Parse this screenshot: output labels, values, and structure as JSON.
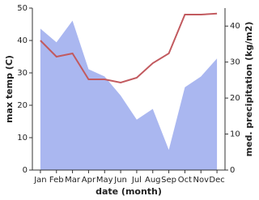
{
  "chart_data": {
    "type": "line-area",
    "xlabel": "date (month)",
    "ylabel": "max temp (C)",
    "y2label": "med. precipitation (kg/m2)",
    "categories": [
      "Jan",
      "Feb",
      "Mar",
      "Apr",
      "May",
      "Jun",
      "Jul",
      "Aug",
      "Sep",
      "Oct",
      "Nov",
      "Dec"
    ],
    "series": [
      {
        "name": "med. precipitation",
        "color": "#aab7f0",
        "axis": "y2",
        "values": [
          39.3,
          35.5,
          41.5,
          28,
          26,
          20.7,
          14,
          17,
          5.6,
          23,
          26,
          31
        ]
      },
      {
        "name": "max temp",
        "color": "#c25a5f",
        "values": [
          40,
          35,
          36,
          28,
          28,
          27,
          28.5,
          33,
          36,
          48,
          48,
          48.3
        ]
      }
    ],
    "ylim": [
      0,
      50
    ],
    "yticks": [
      0,
      10,
      20,
      30,
      40,
      50
    ],
    "y2lim": [
      0,
      45
    ],
    "y2ticks": [
      0,
      10,
      20,
      30,
      40
    ]
  }
}
